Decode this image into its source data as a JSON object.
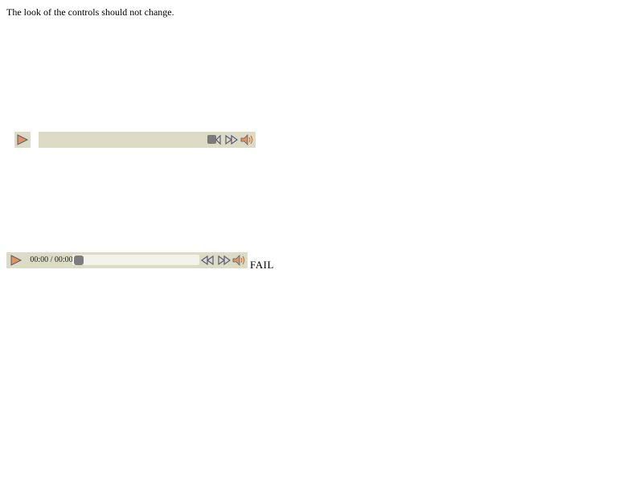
{
  "instruction": "The look of the controls should not change.",
  "detached_controller": {
    "play_icon": "play-icon",
    "camera_icon": "camera-icon",
    "fast_forward_icon": "fast-forward-icon",
    "volume_icon": "speaker-icon"
  },
  "media_controller": {
    "current_time": "00:00",
    "separator": "/",
    "duration": "00:00",
    "time_display": "00:00 / 00:00",
    "progress": 0,
    "play_icon": "play-icon",
    "rewind_icon": "rewind-icon",
    "fast_forward_icon": "fast-forward-icon",
    "volume_icon": "speaker-icon"
  },
  "result": "FAIL",
  "colors": {
    "controller_background": "#dcdcc6",
    "track": "#f3f3ea",
    "thumb": "#7d7d7d",
    "play_fill": "#e0935a",
    "icon_outline": "#5a5a78",
    "speaker_wave": "#c8762e"
  }
}
